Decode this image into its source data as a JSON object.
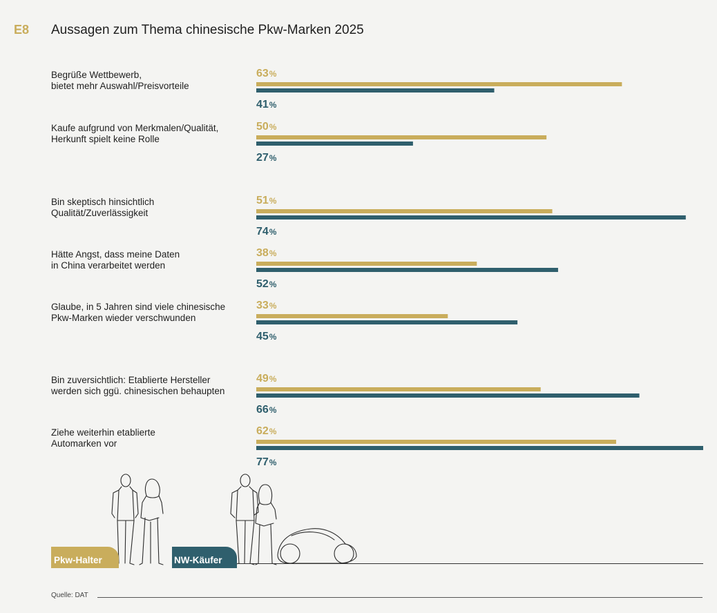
{
  "header": {
    "code": "E8",
    "title": "Aussagen zum Thema chinesische Pkw-Marken 2025"
  },
  "colors": {
    "pkw_halter": "#c9ad5c",
    "nw_kaeufer": "#2f5f6d",
    "background": "#f4f4f2"
  },
  "chart_data": {
    "type": "bar",
    "orientation": "horizontal",
    "title": "Aussagen zum Thema chinesische Pkw-Marken 2025",
    "value_suffix": "%",
    "xlim": [
      0,
      77
    ],
    "categories": [
      [
        "Begrüße Wettbewerb,",
        "bietet mehr Auswahl/Preisvorteile"
      ],
      [
        "Kaufe aufgrund von Merkmalen/Qualität,",
        "Herkunft spielt keine Rolle"
      ],
      [
        "Bin skeptisch hinsichtlich",
        "Qualität/Zuverlässigkeit"
      ],
      [
        "Hätte Angst, dass meine Daten",
        "in China verarbeitet werden"
      ],
      [
        "Glaube, in 5 Jahren sind viele chinesische",
        "Pkw-Marken wieder verschwunden"
      ],
      [
        "Bin zuversichtlich: Etablierte Hersteller",
        "werden sich ggü. chinesischen behaupten"
      ],
      [
        "Ziehe weiterhin etablierte",
        "Automarken vor"
      ]
    ],
    "series": [
      {
        "name": "Pkw-Halter",
        "color": "#c9ad5c",
        "values": [
          63,
          50,
          51,
          38,
          33,
          49,
          62
        ]
      },
      {
        "name": "NW-Käufer",
        "color": "#2f5f6d",
        "values": [
          41,
          27,
          74,
          52,
          45,
          66,
          77
        ]
      }
    ]
  },
  "legend": {
    "pkw_halter": "Pkw-Halter",
    "nw_kaeufer": "NW-Käufer"
  },
  "footer": {
    "source": "Quelle: DAT"
  }
}
